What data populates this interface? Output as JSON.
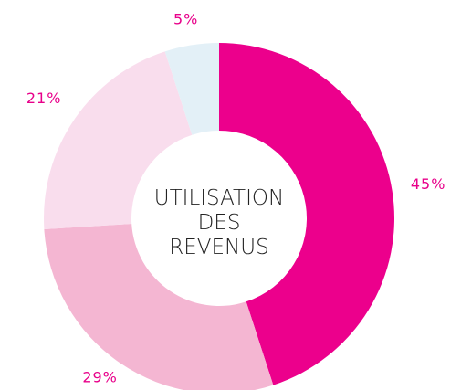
{
  "chart_data": {
    "type": "pie",
    "title": "UTILISATION DES REVENUS",
    "categories": [
      null,
      null,
      null,
      null
    ],
    "values": [
      45,
      29,
      21,
      5
    ],
    "value_labels": [
      "45%",
      "29%",
      "21%",
      "5%"
    ],
    "colors": [
      "#ec008c",
      "#f4b6d2",
      "#f9dded",
      "#e3f0f7"
    ],
    "donut": true
  }
}
